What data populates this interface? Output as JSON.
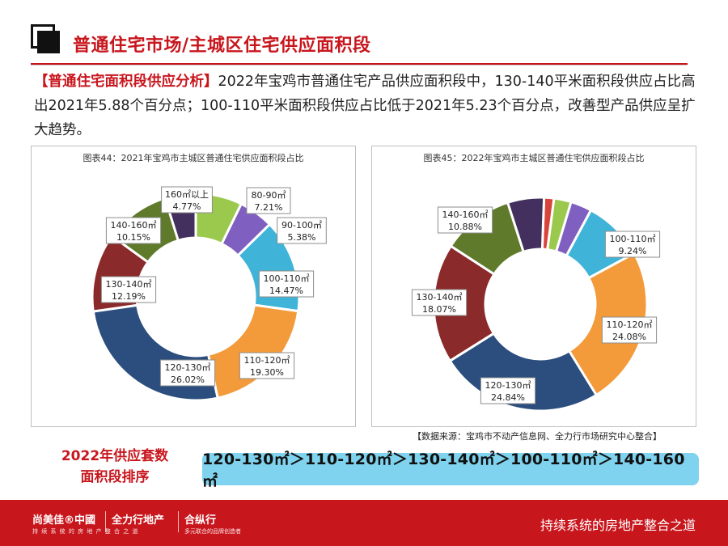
{
  "header": {
    "title": "普通住宅市场/主城区住宅供应面积段"
  },
  "analysis": {
    "tag": "【普通住宅面积段供应分析】",
    "text": "2022年宝鸡市普通住宅产品供应面积段中，130-140平米面积段供应占比高出2021年5.88个百分点；100-110平米面积段供应占比低于2021年5.23个百分点，改善型产品供应呈扩大趋势。"
  },
  "chart_data": [
    {
      "type": "pie",
      "title": "图表44：2021年宝鸡市主城区普通住宅供应面积段占比",
      "slices": [
        {
          "label": "80-90㎡",
          "value": 7.21,
          "color": "#9bc94d",
          "display": "7.21%"
        },
        {
          "label": "90-100㎡",
          "value": 5.38,
          "color": "#7f5fbf",
          "display": "5.38%"
        },
        {
          "label": "100-110㎡",
          "value": 14.47,
          "color": "#3fb4d8",
          "display": "14.47%"
        },
        {
          "label": "110-120㎡",
          "value": 19.3,
          "color": "#f39a3a",
          "display": "19.30%"
        },
        {
          "label": "120-130㎡",
          "value": 26.02,
          "color": "#2b4e7e",
          "display": "26.02%"
        },
        {
          "label": "130-140㎡",
          "value": 12.19,
          "color": "#8b2a2a",
          "display": "12.19%"
        },
        {
          "label": "140-160㎡",
          "value": 10.15,
          "color": "#5f7a2b",
          "display": "10.15%"
        },
        {
          "label": "160㎡以上",
          "value": 4.77,
          "color": "#43305e",
          "display": "4.77%"
        }
      ]
    },
    {
      "type": "pie",
      "title": "图表45：2022年宝鸡市主城区普通住宅供应面积段占比",
      "slices": [
        {
          "label": "",
          "value": 1.5,
          "color": "#d9443a",
          "display": ""
        },
        {
          "label": "",
          "value": 2.6,
          "color": "#9bc94d",
          "display": ""
        },
        {
          "label": "",
          "value": 3.2,
          "color": "#7f5fbf",
          "display": ""
        },
        {
          "label": "100-110㎡",
          "value": 9.24,
          "color": "#3fb4d8",
          "display": "9.24%"
        },
        {
          "label": "110-120㎡",
          "value": 24.08,
          "color": "#f39a3a",
          "display": "24.08%"
        },
        {
          "label": "120-130㎡",
          "value": 24.84,
          "color": "#2b4e7e",
          "display": "24.84%"
        },
        {
          "label": "130-140㎡",
          "value": 18.07,
          "color": "#8b2a2a",
          "display": "18.07%"
        },
        {
          "label": "140-160㎡",
          "value": 10.88,
          "color": "#5f7a2b",
          "display": "10.88%"
        },
        {
          "label": "",
          "value": 5.5,
          "color": "#43305e",
          "display": ""
        }
      ]
    }
  ],
  "source": "【数据来源：宝鸡市不动产信息网、全力行市场研究中心整合】",
  "ranking": {
    "label_line1": "2022年供应套数",
    "label_line2": "面积段排序",
    "sequence": "120-130㎡＞110-120㎡＞130-140㎡＞100-110㎡＞140-160㎡"
  },
  "footer": {
    "brand1": "尚美佳®中國",
    "brand1_sub": "持 续 系 统 的 房 地 产 整 合 之 道",
    "brand2": "全力行地产",
    "brand3": "合纵行",
    "brand3_sub": "多元联合的品牌创造者",
    "slogan": "持续系统的房地产整合之道"
  }
}
